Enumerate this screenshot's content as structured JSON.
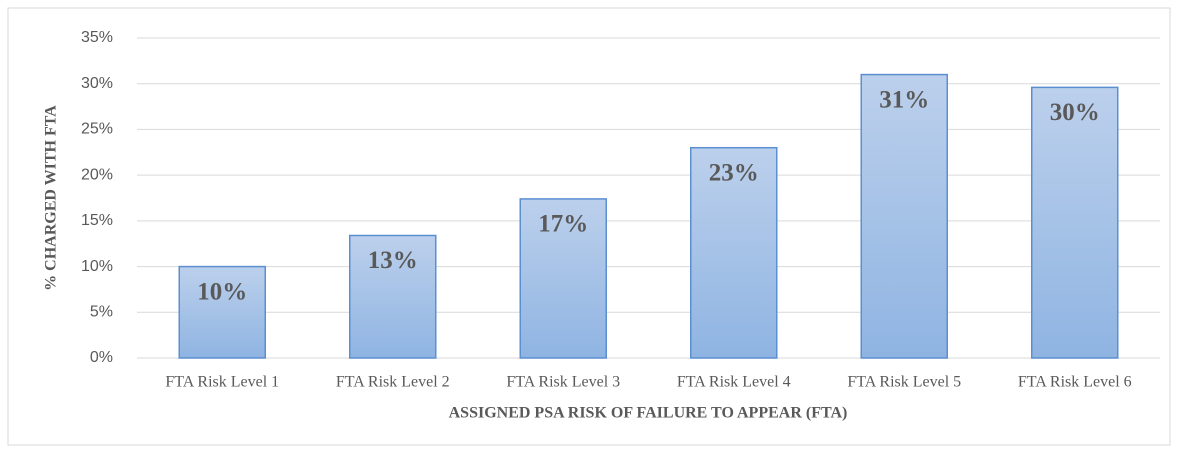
{
  "chart_data": {
    "type": "bar",
    "x_label": "ASSIGNED PSA RISK OF FAILURE TO APPEAR (FTA)",
    "y_label": "%  CHARGED WITH FTA",
    "categories": [
      "FTA Risk Level 1",
      "FTA Risk Level 2",
      "FTA Risk Level 3",
      "FTA Risk Level 4",
      "FTA Risk Level 5",
      "FTA Risk Level 6"
    ],
    "values": [
      10,
      13.4,
      17.4,
      23,
      31,
      29.6
    ],
    "value_labels": [
      "10%",
      "13%",
      "17%",
      "23%",
      "31%",
      "30%"
    ],
    "color": "#8fb4e2",
    "ylim": [
      0,
      35
    ],
    "yticks": [
      {
        "value": 0,
        "label": "0%"
      },
      {
        "value": 5,
        "label": "5%"
      },
      {
        "value": 10,
        "label": "10%"
      },
      {
        "value": 15,
        "label": "15%"
      },
      {
        "value": 20,
        "label": "20%"
      },
      {
        "value": 25,
        "label": "25%"
      },
      {
        "value": 30,
        "label": "30%"
      },
      {
        "value": 35,
        "label": "35%"
      }
    ],
    "grid": true
  }
}
